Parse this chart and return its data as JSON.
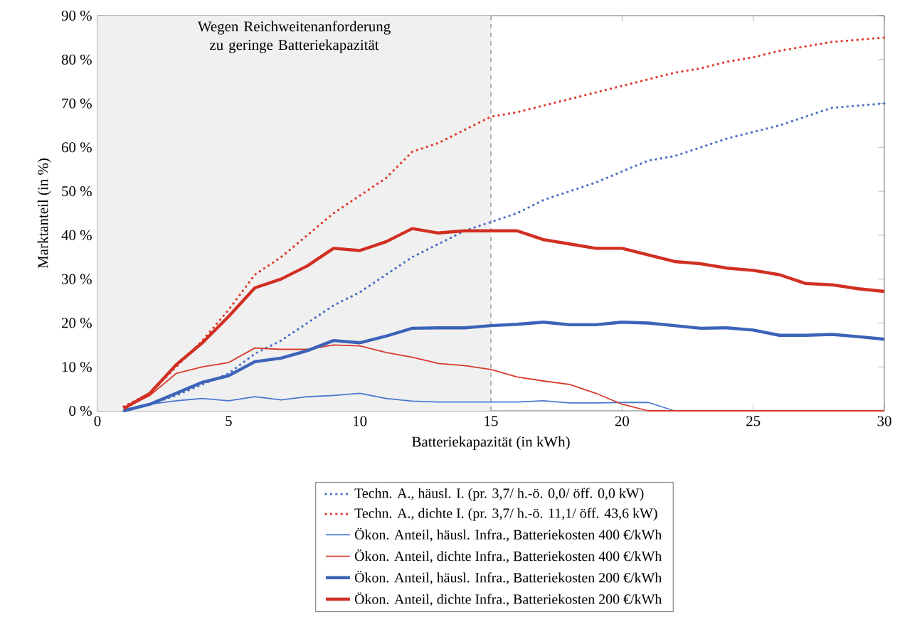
{
  "chart_data": {
    "type": "line",
    "xlabel": "Batteriekapazität (in kWh)",
    "ylabel": "Marktanteil (in %)",
    "x": [
      1,
      2,
      3,
      4,
      5,
      6,
      7,
      8,
      9,
      10,
      11,
      12,
      13,
      14,
      15,
      16,
      17,
      18,
      19,
      20,
      21,
      22,
      23,
      24,
      25,
      26,
      27,
      28,
      29,
      30
    ],
    "series": [
      {
        "name": "Techn. A., häusl. I. (pr. 3,7/ h.-ö. 0,0/ öff. 0,0 kW)",
        "color": "#4a6fc4",
        "line_style": "dotted",
        "values": [
          0,
          1.5,
          3.5,
          6,
          8.5,
          13,
          16,
          20,
          24,
          27,
          31,
          35,
          38,
          41,
          43,
          45,
          48,
          50,
          52,
          54.5,
          57,
          58,
          60,
          62,
          63.5,
          65,
          67,
          69,
          69.5,
          70
        ]
      },
      {
        "name": "Techn. A., dichte I. (pr. 3,7/ h.-ö. 11,1/ öff. 43,6 kW)",
        "color": "#e03a2e",
        "line_style": "dotted",
        "values": [
          1,
          4,
          10,
          16,
          23,
          31,
          35,
          40,
          45,
          49,
          53,
          59,
          61,
          64,
          67,
          68,
          69.5,
          71,
          72.5,
          74,
          75.5,
          77,
          78,
          79.5,
          80.5,
          82,
          83,
          84,
          84.5,
          85
        ]
      },
      {
        "name": "Ökon. Anteil, häusl. Infra., Batteriekosten 400 €/kWh",
        "color": "#4a78d0",
        "line_style": "solid",
        "values": [
          0,
          1.5,
          2.3,
          2.8,
          2.3,
          3.2,
          2.5,
          3.2,
          3.5,
          4,
          2.8,
          2.2,
          2,
          2,
          2,
          2,
          2.3,
          1.8,
          1.8,
          1.9,
          1.9,
          0,
          0,
          null,
          null,
          null,
          null,
          null,
          null,
          null
        ]
      },
      {
        "name": "Ökon. Anteil, dichte Infra., Batteriekosten 400 €/kWh",
        "color": "#d83b2b",
        "line_style": "solid",
        "values": [
          0.5,
          3.5,
          8.5,
          10,
          11,
          14.3,
          14,
          14,
          15,
          14.8,
          13.3,
          12.2,
          10.8,
          10.3,
          9.4,
          7.7,
          6.8,
          6,
          4,
          1.5,
          0,
          0,
          0,
          0,
          0,
          0,
          0,
          0,
          0,
          0
        ]
      },
      {
        "name": "Ökon. Anteil, häusl. Infra., Batteriekosten 200 €/kWh",
        "color": "#3b63b8",
        "line_style": "solid",
        "values": [
          0,
          1.5,
          4,
          6.5,
          8,
          11.2,
          12,
          13.7,
          16,
          15.5,
          17,
          18.8,
          18.9,
          18.9,
          19.4,
          19.7,
          20.2,
          19.6,
          19.6,
          20.2,
          20,
          19.4,
          18.8,
          18.9,
          18.4,
          17.2,
          17.2,
          17.4,
          16.9,
          16.3
        ]
      },
      {
        "name": "Ökon. Anteil, dichte Infra., Batteriekosten 200 €/kWh",
        "color": "#d12f22",
        "line_style": "solid",
        "values": [
          0.5,
          4,
          10.5,
          15.5,
          21.5,
          28,
          30,
          33,
          37,
          36.5,
          38.5,
          41.5,
          40.5,
          41,
          41,
          41,
          39,
          38,
          37,
          37,
          35.5,
          34,
          33.5,
          32.5,
          32,
          31,
          29,
          28.7,
          27.8,
          27.2
        ]
      }
    ],
    "xlim": [
      0,
      30
    ],
    "xticks": [
      0,
      5,
      10,
      15,
      20,
      25,
      30
    ],
    "ylim": [
      0,
      90
    ],
    "yticks": [
      {
        "value": 0,
        "label": "0 %"
      },
      {
        "value": 10,
        "label": "10 %"
      },
      {
        "value": 20,
        "label": "20 %"
      },
      {
        "value": 30,
        "label": "30 %"
      },
      {
        "value": 40,
        "label": "40 %"
      },
      {
        "value": 50,
        "label": "50 %"
      },
      {
        "value": 60,
        "label": "60 %"
      },
      {
        "value": 70,
        "label": "70 %"
      },
      {
        "value": 80,
        "label": "80 %"
      },
      {
        "value": 90,
        "label": "90 %"
      }
    ],
    "bands": [
      {
        "axis": "x",
        "from": 0,
        "to": 15,
        "label": "Wegen Reichweitenanforderung zu geringe Batteriekapazität",
        "color": "#f0f0f0"
      }
    ],
    "ref_lines": [
      {
        "axis": "x",
        "value": 15,
        "color": "#aaaaaa",
        "line_style": "dashed"
      }
    ],
    "legend": "bottom",
    "grid": false,
    "marker": "none"
  }
}
